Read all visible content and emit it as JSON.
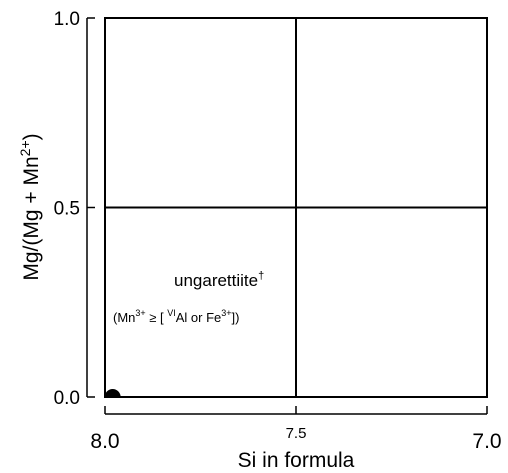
{
  "chart_data": {
    "type": "scatter",
    "title": "",
    "xlabel": "Si in formula",
    "ylabel_parts": {
      "prefix": "Mg/(Mg + Mn",
      "sup": "2+",
      "suffix": ")"
    },
    "xlim": [
      8.0,
      7.0
    ],
    "ylim": [
      0.0,
      1.0
    ],
    "x_reversed": true,
    "x_ticks": [
      {
        "value": 8.0,
        "label": "8.0"
      },
      {
        "value": 7.5,
        "label": "7.5"
      },
      {
        "value": 7.0,
        "label": "7.0"
      }
    ],
    "y_ticks": [
      {
        "value": 0.0,
        "label": "0.0"
      },
      {
        "value": 0.5,
        "label": "0.5"
      },
      {
        "value": 1.0,
        "label": "1.0"
      }
    ],
    "dividers": {
      "x": 7.5,
      "y": 0.5
    },
    "field_label": {
      "name": "ungarettiite",
      "dagger": "†",
      "condition_parts": {
        "open": "(Mn",
        "mn_sup": "3+",
        "relation": " ≥ [ ",
        "vi_sup": "VI",
        "al_or": "Al or Fe",
        "fe_sup": "3+",
        "close": "])"
      }
    },
    "points": [
      {
        "x": 7.98,
        "y": 0.0
      }
    ],
    "colors": {
      "axis": "#000000",
      "point": "#000000"
    }
  }
}
